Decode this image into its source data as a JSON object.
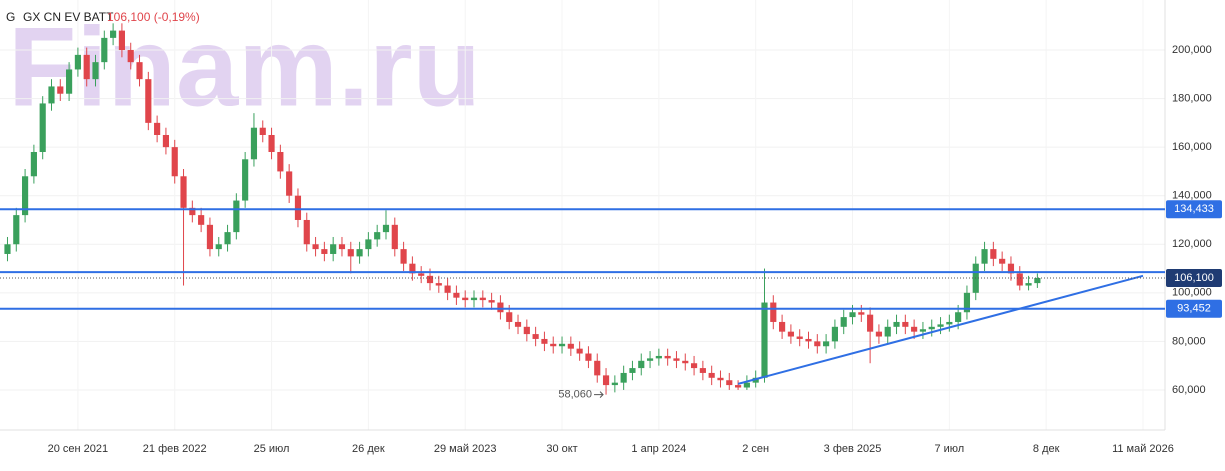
{
  "header": {
    "symbol": "G",
    "name": "GX CN EV BATT",
    "quote": "106,100 (-0,19%)"
  },
  "watermark": "Finam.ru",
  "chart_data": {
    "type": "candlestick",
    "up_color": "#3aa05c",
    "down_color": "#e0454b",
    "level_color": "#2f6fe4",
    "price_color": "#1f3b73",
    "quote_color": "#e0454b",
    "grid": true,
    "xlim": [
      -0.85,
      131.5
    ],
    "xticks": [
      {
        "value": 8,
        "label": "20 сен 2021"
      },
      {
        "value": 19,
        "label": "21 фев 2022"
      },
      {
        "value": 30,
        "label": "25 июл"
      },
      {
        "value": 41,
        "label": "26 дек"
      },
      {
        "value": 52,
        "label": "29 май 2023"
      },
      {
        "value": 63,
        "label": "30 окт"
      },
      {
        "value": 74,
        "label": "1 апр 2024"
      },
      {
        "value": 85,
        "label": "2 сен"
      },
      {
        "value": 96,
        "label": "3 фев 2025"
      },
      {
        "value": 107,
        "label": "7 июл"
      },
      {
        "value": 118,
        "label": "8 дек"
      },
      {
        "value": 129,
        "label": "11 май 2026"
      }
    ],
    "ylim": [
      43500,
      220600
    ],
    "yticks": [
      {
        "value": 60000,
        "label": "60,000"
      },
      {
        "value": 80000,
        "label": "80,000"
      },
      {
        "value": 100000,
        "label": "100,000"
      },
      {
        "value": 120000,
        "label": "120,000"
      },
      {
        "value": 140000,
        "label": "140,000"
      },
      {
        "value": 160000,
        "label": "160,000"
      },
      {
        "value": 180000,
        "label": "180,000"
      },
      {
        "value": 200000,
        "label": "200,000"
      }
    ],
    "levels": [
      {
        "value": 134433,
        "label": "134,433"
      },
      {
        "value": 108500
      },
      {
        "value": 93452,
        "label": "93,452"
      }
    ],
    "last_price": {
      "value": 106100,
      "label": "106,100"
    },
    "trendline": {
      "x": [
        83,
        129
      ],
      "y": [
        62500,
        107000
      ]
    },
    "low_annotation": {
      "x": 68,
      "value": 58060,
      "label": "58,060"
    },
    "ohlc": [
      [
        116000,
        123000,
        113000,
        120000
      ],
      [
        120000,
        135000,
        117000,
        132000
      ],
      [
        132000,
        151000,
        129000,
        148000
      ],
      [
        148000,
        161000,
        145000,
        158000
      ],
      [
        158000,
        181000,
        155000,
        178000
      ],
      [
        178000,
        188000,
        175000,
        185000
      ],
      [
        185000,
        188000,
        179000,
        182000
      ],
      [
        182000,
        195000,
        179000,
        192000
      ],
      [
        192000,
        201000,
        189000,
        198000
      ],
      [
        198000,
        201000,
        185000,
        188000
      ],
      [
        188000,
        198000,
        185000,
        195000
      ],
      [
        195000,
        208000,
        192000,
        205000
      ],
      [
        205000,
        211000,
        202000,
        208000
      ],
      [
        208000,
        211000,
        197000,
        200000
      ],
      [
        200000,
        203000,
        192000,
        195000
      ],
      [
        195000,
        198000,
        185000,
        188000
      ],
      [
        188000,
        191000,
        167000,
        170000
      ],
      [
        170000,
        173000,
        162000,
        165000
      ],
      [
        165000,
        168000,
        157000,
        160000
      ],
      [
        160000,
        163000,
        145000,
        148000
      ],
      [
        148000,
        151000,
        103000,
        135000
      ],
      [
        135000,
        138000,
        129000,
        132000
      ],
      [
        132000,
        135000,
        125000,
        128000
      ],
      [
        128000,
        131000,
        115000,
        118000
      ],
      [
        118000,
        123000,
        115000,
        120000
      ],
      [
        120000,
        128000,
        117000,
        125000
      ],
      [
        125000,
        141000,
        122000,
        138000
      ],
      [
        138000,
        158000,
        135000,
        155000
      ],
      [
        155000,
        174000,
        152000,
        168000
      ],
      [
        168000,
        171000,
        162000,
        165000
      ],
      [
        165000,
        168000,
        155000,
        158000
      ],
      [
        158000,
        161000,
        147000,
        150000
      ],
      [
        150000,
        153000,
        137000,
        140000
      ],
      [
        140000,
        143000,
        127000,
        130000
      ],
      [
        130000,
        133000,
        117000,
        120000
      ],
      [
        120000,
        123000,
        115000,
        118000
      ],
      [
        118000,
        121000,
        113000,
        116000
      ],
      [
        116000,
        123000,
        113000,
        120000
      ],
      [
        120000,
        123000,
        115000,
        118000
      ],
      [
        118000,
        121000,
        108000,
        115000
      ],
      [
        115000,
        121000,
        112000,
        118000
      ],
      [
        118000,
        125000,
        115000,
        122000
      ],
      [
        122000,
        128000,
        119000,
        125000
      ],
      [
        125000,
        134000,
        122000,
        128000
      ],
      [
        128000,
        131000,
        115000,
        118000
      ],
      [
        118000,
        121000,
        109000,
        112000
      ],
      [
        112000,
        115000,
        105000,
        108000
      ],
      [
        108000,
        111000,
        104000,
        107000
      ],
      [
        107000,
        110000,
        101000,
        104000
      ],
      [
        104000,
        107000,
        100000,
        103000
      ],
      [
        103000,
        106000,
        97000,
        100000
      ],
      [
        100000,
        103000,
        95000,
        98000
      ],
      [
        98000,
        101000,
        94000,
        97000
      ],
      [
        97000,
        101000,
        94000,
        98000
      ],
      [
        98000,
        101000,
        94000,
        97000
      ],
      [
        97000,
        100000,
        93000,
        96000
      ],
      [
        96000,
        99000,
        89000,
        92000
      ],
      [
        92000,
        95000,
        85000,
        88000
      ],
      [
        88000,
        91000,
        83000,
        86000
      ],
      [
        86000,
        89000,
        80000,
        83000
      ],
      [
        83000,
        86000,
        78000,
        81000
      ],
      [
        81000,
        84000,
        76000,
        79000
      ],
      [
        79000,
        82000,
        75000,
        78000
      ],
      [
        78000,
        82000,
        75000,
        79000
      ],
      [
        79000,
        82000,
        74000,
        77000
      ],
      [
        77000,
        80000,
        72000,
        75000
      ],
      [
        75000,
        78000,
        69000,
        72000
      ],
      [
        72000,
        75000,
        63000,
        66000
      ],
      [
        66000,
        69000,
        58060,
        62000
      ],
      [
        62000,
        66000,
        59000,
        63000
      ],
      [
        63000,
        70000,
        60000,
        67000
      ],
      [
        67000,
        72000,
        64000,
        69000
      ],
      [
        69000,
        75000,
        66000,
        72000
      ],
      [
        72000,
        76000,
        69000,
        73000
      ],
      [
        73000,
        77000,
        70000,
        74000
      ],
      [
        74000,
        77000,
        70000,
        73000
      ],
      [
        73000,
        76000,
        69000,
        72000
      ],
      [
        72000,
        75000,
        68000,
        71000
      ],
      [
        71000,
        74000,
        66000,
        69000
      ],
      [
        69000,
        72000,
        64000,
        67000
      ],
      [
        67000,
        70000,
        62000,
        65000
      ],
      [
        65000,
        68000,
        61000,
        64000
      ],
      [
        64000,
        67000,
        60000,
        62000
      ],
      [
        62000,
        64000,
        60000,
        61000
      ],
      [
        61000,
        66000,
        60000,
        63000
      ],
      [
        63000,
        68000,
        61000,
        65000
      ],
      [
        65000,
        110000,
        63000,
        96000
      ],
      [
        96000,
        99000,
        85000,
        88000
      ],
      [
        88000,
        91000,
        81000,
        84000
      ],
      [
        84000,
        87000,
        79000,
        82000
      ],
      [
        82000,
        85000,
        78000,
        81000
      ],
      [
        81000,
        84000,
        77000,
        80000
      ],
      [
        80000,
        83000,
        75000,
        78000
      ],
      [
        78000,
        83000,
        75000,
        80000
      ],
      [
        80000,
        89000,
        77000,
        86000
      ],
      [
        86000,
        93000,
        83000,
        90000
      ],
      [
        90000,
        95000,
        87000,
        92000
      ],
      [
        92000,
        95000,
        88000,
        91000
      ],
      [
        91000,
        94000,
        71000,
        84000
      ],
      [
        84000,
        87000,
        79000,
        82000
      ],
      [
        82000,
        89000,
        79000,
        86000
      ],
      [
        86000,
        91000,
        83000,
        88000
      ],
      [
        88000,
        91000,
        83000,
        86000
      ],
      [
        86000,
        89000,
        81000,
        84000
      ],
      [
        84000,
        88000,
        81000,
        85000
      ],
      [
        85000,
        89000,
        82000,
        86000
      ],
      [
        86000,
        90000,
        83000,
        87000
      ],
      [
        87000,
        91000,
        84000,
        88000
      ],
      [
        88000,
        95000,
        85000,
        92000
      ],
      [
        92000,
        103000,
        89000,
        100000
      ],
      [
        100000,
        115000,
        97000,
        112000
      ],
      [
        112000,
        121000,
        109000,
        118000
      ],
      [
        118000,
        121000,
        111000,
        114000
      ],
      [
        114000,
        117000,
        109000,
        112000
      ],
      [
        112000,
        115000,
        105000,
        108000
      ],
      [
        108000,
        111000,
        101000,
        103000
      ],
      [
        103000,
        107000,
        101000,
        104000
      ],
      [
        104000,
        108000,
        102000,
        106100
      ]
    ]
  }
}
